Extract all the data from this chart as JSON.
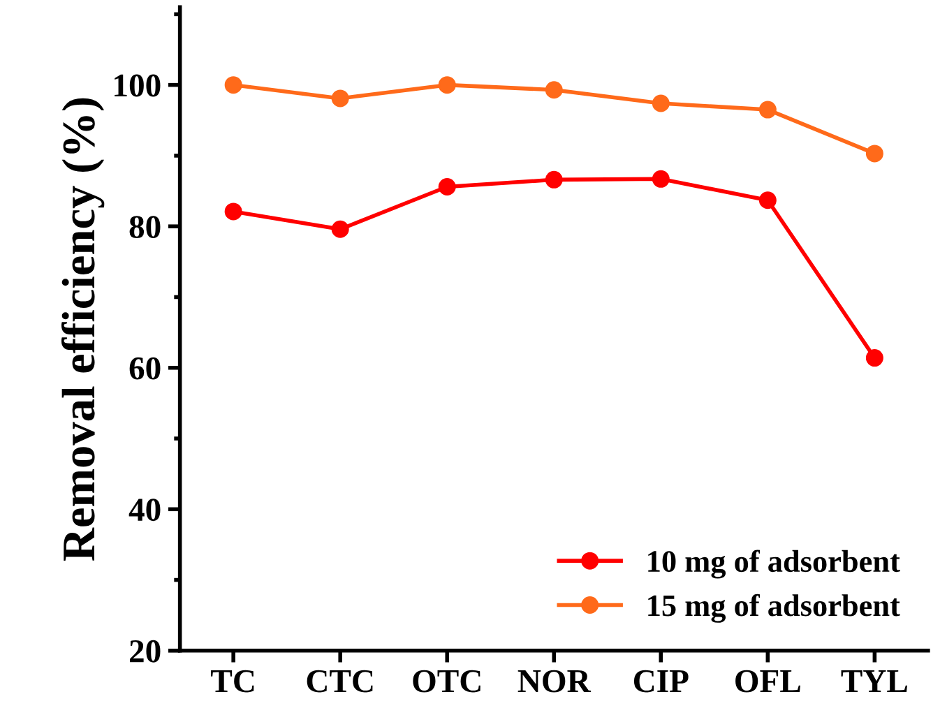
{
  "chart_data": {
    "type": "line",
    "ylabel": "Removal efficiency (%)",
    "categories": [
      "TC",
      "CTC",
      "OTC",
      "NOR",
      "CIP",
      "OFL",
      "TYL"
    ],
    "series": [
      {
        "name": "10 mg of adsorbent",
        "color": "#ff0000",
        "values": [
          82.1,
          79.6,
          85.6,
          86.6,
          86.7,
          83.7,
          61.4
        ]
      },
      {
        "name": "15 mg of adsorbent",
        "color": "#ff6a1a",
        "values": [
          100,
          98.1,
          100,
          99.3,
          97.4,
          96.5,
          90.3
        ]
      }
    ],
    "ylim": [
      20,
      111
    ],
    "yticks": [
      20,
      40,
      60,
      80,
      100
    ],
    "grid": false,
    "legend": "bottom right",
    "marker": "circle",
    "line_style": "solid"
  }
}
